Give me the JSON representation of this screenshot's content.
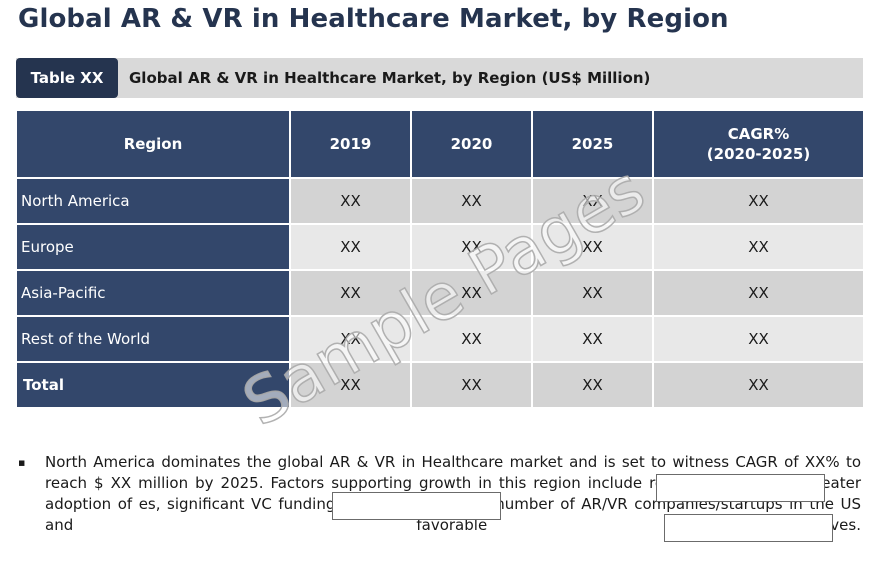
{
  "page": {
    "title": "Global AR & VR in Healthcare Market, by Region"
  },
  "caption": {
    "tag": "Table XX",
    "text": "Global AR & VR in Healthcare Market, by Region (US$ Million)"
  },
  "table": {
    "headers": [
      "Region",
      "2019",
      "2020",
      "2025",
      "CAGR%",
      "(2020-2025)"
    ],
    "rows": [
      {
        "region": "North America",
        "values": [
          "XX",
          "XX",
          "XX",
          "XX"
        ]
      },
      {
        "region": "Europe",
        "values": [
          "XX",
          "XX",
          "XX",
          "XX"
        ]
      },
      {
        "region": "Asia-Pacific",
        "values": [
          "XX",
          "XX",
          "XX",
          "XX"
        ]
      },
      {
        "region": "Rest of the World",
        "values": [
          "XX",
          "XX",
          "XX",
          "XX"
        ]
      },
      {
        "region": "Total",
        "values": [
          "XX",
          "XX",
          "XX",
          "XX"
        ]
      }
    ]
  },
  "watermark": "Sample Pages",
  "note": {
    "text": "North America dominates the global AR & VR in Healthcare market and is set to witness CAGR of XX% to reach $ XX million by 2025. Factors supporting growth in this region include re IT infrastructure, greater adoption of es, significant VC fundings, presence of large number of AR/VR companies/startups in the US and favorable ves."
  }
}
